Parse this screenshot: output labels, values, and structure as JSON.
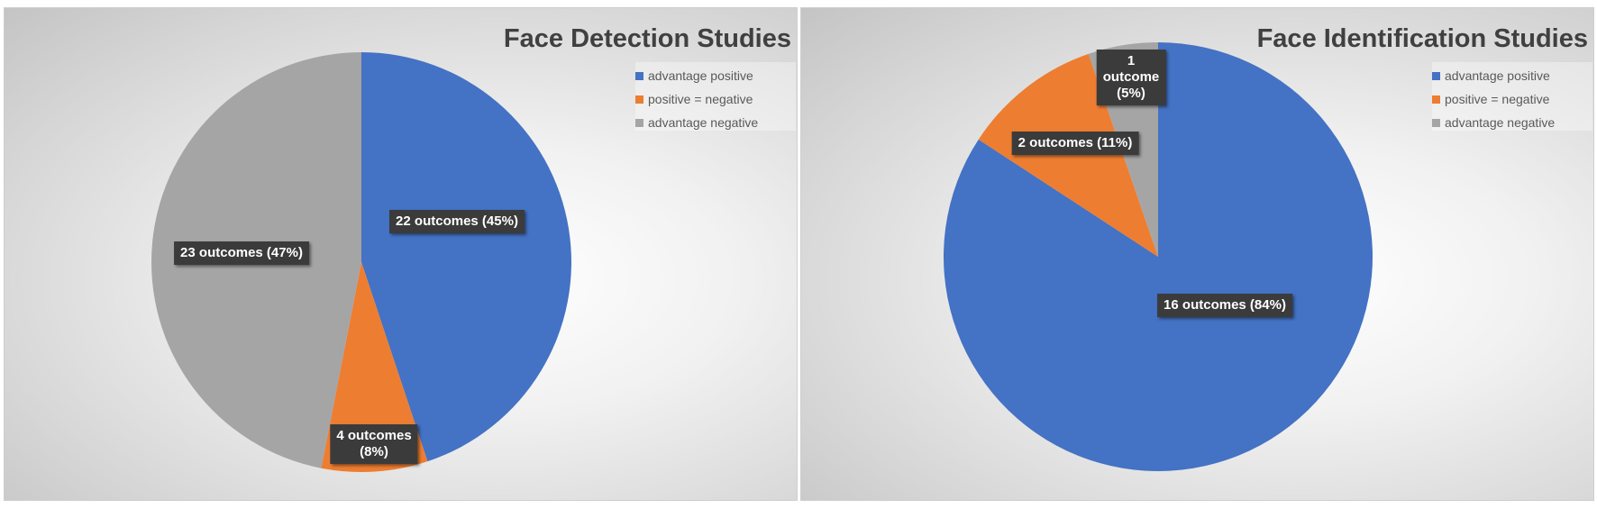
{
  "chart_data": [
    {
      "type": "pie",
      "title": "Face Detection Studies",
      "categories": [
        "advantage positive",
        "positive = negative",
        "advantage negative"
      ],
      "values": [
        22,
        4,
        23
      ],
      "data_labels": [
        "22 outcomes (45%)",
        "4 outcomes\n(8%)",
        "23 outcomes (47%)"
      ],
      "colors": [
        "#4472C4",
        "#ED7D31",
        "#A5A5A5"
      ],
      "legend_position": "top-right"
    },
    {
      "type": "pie",
      "title": "Face Identification Studies",
      "categories": [
        "advantage positive",
        "positive = negative",
        "advantage negative"
      ],
      "values": [
        16,
        2,
        1
      ],
      "data_labels": [
        "16 outcomes (84%)",
        "2 outcomes (11%)",
        "1\noutcome\n(5%)"
      ],
      "colors": [
        "#4472C4",
        "#ED7D31",
        "#A5A5A5"
      ],
      "legend_position": "top-right"
    }
  ]
}
